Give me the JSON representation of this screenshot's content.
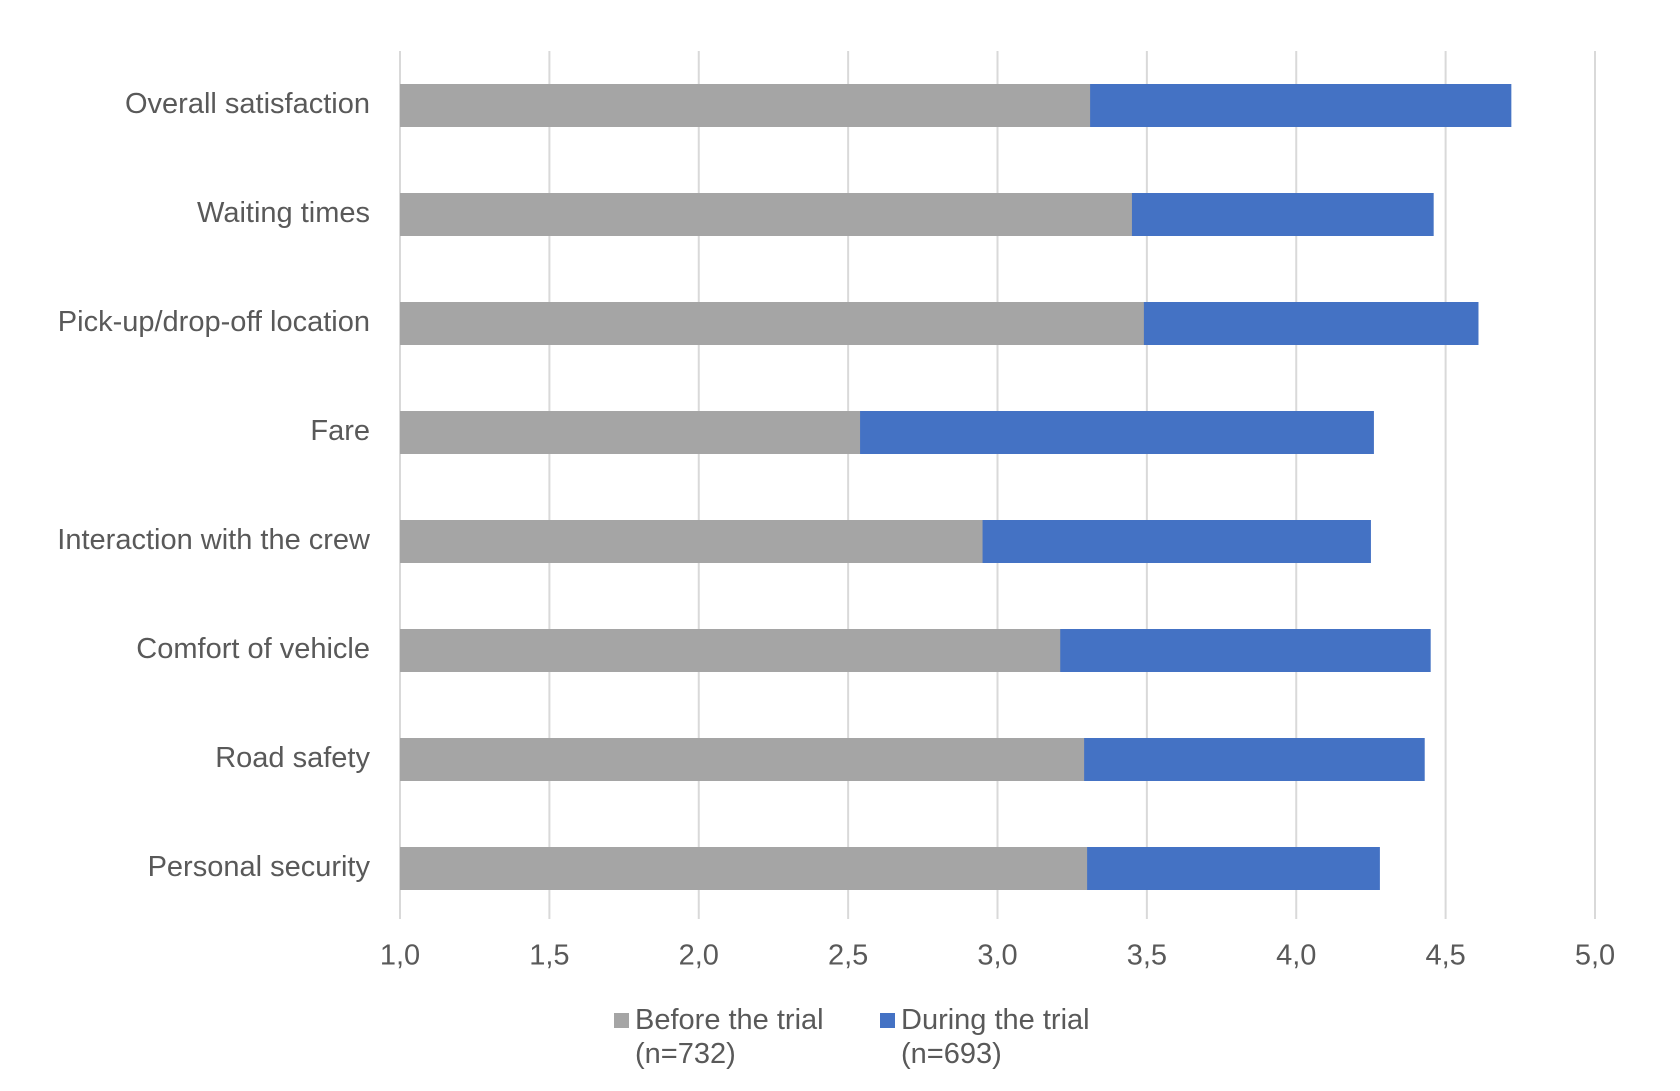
{
  "chart_data": {
    "type": "bar",
    "orientation": "horizontal",
    "overlap": true,
    "categories": [
      "Overall satisfaction",
      "Waiting times",
      "Pick-up/drop-off location",
      "Fare",
      "Interaction with the crew",
      "Comfort of vehicle",
      "Road safety",
      "Personal security"
    ],
    "series": [
      {
        "name": "During the trial (n=693)",
        "color": "#4472c4",
        "values": [
          4.72,
          4.46,
          4.61,
          4.26,
          4.25,
          4.45,
          4.43,
          4.28
        ]
      },
      {
        "name": "Before the trial (n=732)",
        "color": "#a5a5a5",
        "values": [
          3.31,
          3.45,
          3.49,
          2.54,
          2.95,
          3.21,
          3.29,
          3.3
        ]
      }
    ],
    "xlim": [
      1.0,
      5.0
    ],
    "xticks": [
      {
        "value": 1.0,
        "label": "1,0"
      },
      {
        "value": 1.5,
        "label": "1,5"
      },
      {
        "value": 2.0,
        "label": "2,0"
      },
      {
        "value": 2.5,
        "label": "2,5"
      },
      {
        "value": 3.0,
        "label": "3,0"
      },
      {
        "value": 3.5,
        "label": "3,5"
      },
      {
        "value": 4.0,
        "label": "4,0"
      },
      {
        "value": 4.5,
        "label": "4,5"
      },
      {
        "value": 5.0,
        "label": "5,0"
      }
    ],
    "grid": true,
    "legend": "bottom"
  }
}
